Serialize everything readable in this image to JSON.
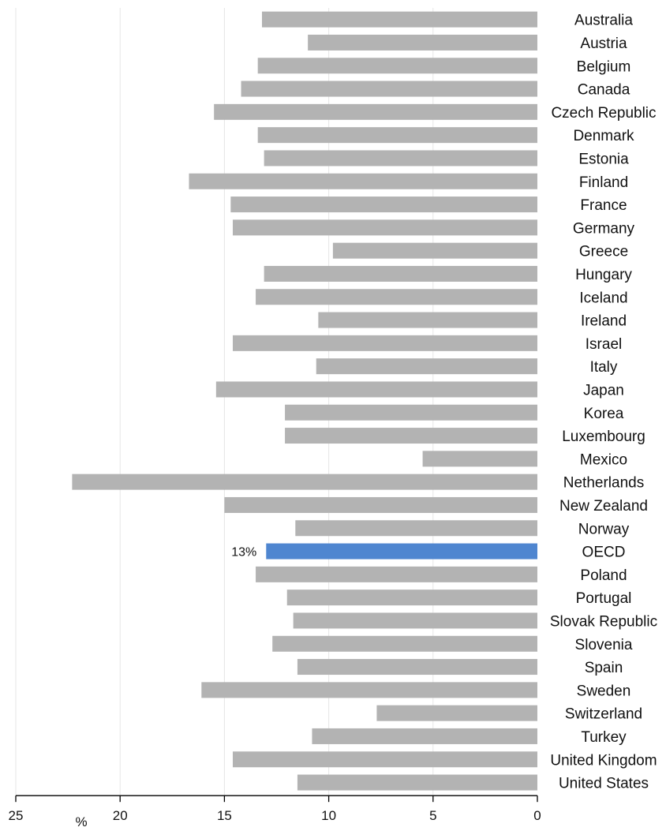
{
  "chart_data": {
    "type": "bar",
    "orientation": "horizontal",
    "x_reversed": true,
    "categories": [
      "Australia",
      "Austria",
      "Belgium",
      "Canada",
      "Czech Republic",
      "Denmark",
      "Estonia",
      "Finland",
      "France",
      "Germany",
      "Greece",
      "Hungary",
      "Iceland",
      "Ireland",
      "Israel",
      "Italy",
      "Japan",
      "Korea",
      "Luxembourg",
      "Mexico",
      "Netherlands",
      "New Zealand",
      "Norway",
      "OECD",
      "Poland",
      "Portugal",
      "Slovak Republic",
      "Slovenia",
      "Spain",
      "Sweden",
      "Switzerland",
      "Turkey",
      "United Kingdom",
      "United States"
    ],
    "values": [
      13.2,
      11.0,
      13.4,
      14.2,
      15.5,
      13.4,
      13.1,
      16.7,
      14.7,
      14.6,
      9.8,
      13.1,
      13.5,
      10.5,
      14.6,
      10.6,
      15.4,
      12.1,
      12.1,
      5.5,
      22.3,
      15.0,
      11.6,
      13.0,
      13.5,
      12.0,
      11.7,
      12.7,
      11.5,
      16.1,
      7.7,
      10.8,
      14.6,
      11.5
    ],
    "highlight": {
      "category": "OECD",
      "label": "13%"
    },
    "xlim": [
      0,
      25
    ],
    "xticks": [
      25,
      20,
      15,
      10,
      5,
      0
    ],
    "xlabel": "%",
    "title": "",
    "grid": "vertical",
    "colors": {
      "bar": "#b3b3b3",
      "highlight": "#4f86d0",
      "grid": "#e6e6e6",
      "axis": "#000000"
    }
  }
}
